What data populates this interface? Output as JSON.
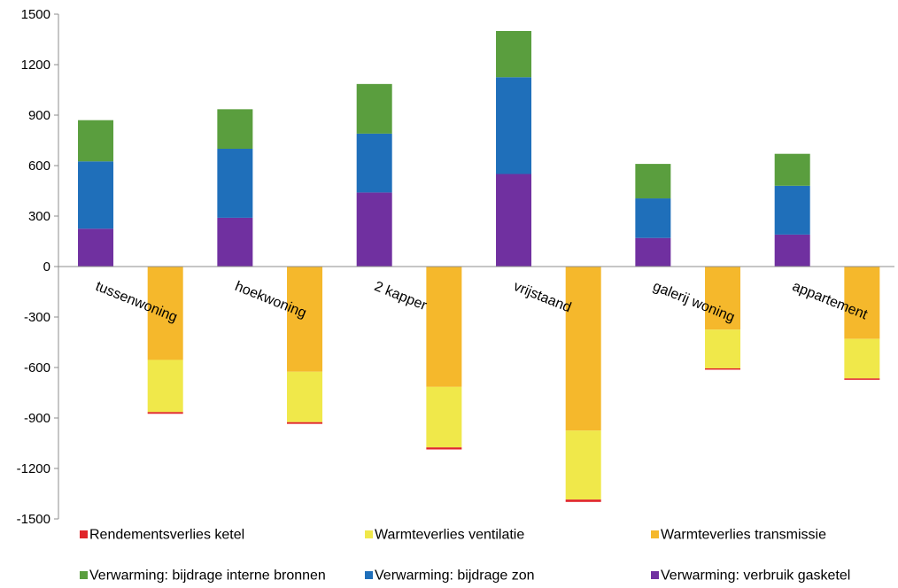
{
  "chart_data": {
    "type": "bar",
    "stacked": true,
    "categories": [
      "tussenwoning",
      "hoekwoning",
      "2 kapper",
      "vrijstaand",
      "galerij woning",
      "appartement"
    ],
    "ylim": [
      -1500,
      1500
    ],
    "yticks": [
      1500,
      1200,
      900,
      600,
      300,
      0,
      -300,
      -600,
      -900,
      -1200,
      -1500
    ],
    "grid": false,
    "legend_position": "bottom",
    "positive_series": [
      {
        "name": "Verwarming: verbruik gasketel",
        "color": "#7030a0",
        "values": [
          225,
          290,
          440,
          550,
          170,
          190
        ]
      },
      {
        "name": "Verwarming: bijdrage zon",
        "color": "#1f6fba",
        "values": [
          400,
          410,
          350,
          575,
          235,
          290
        ]
      },
      {
        "name": "Verwarming: bijdrage interne bronnen",
        "color": "#5a9e3e",
        "values": [
          245,
          235,
          295,
          275,
          205,
          190
        ]
      }
    ],
    "negative_series": [
      {
        "name": "Warmteverlies transmissie",
        "color": "#f5b82c",
        "values": [
          -555,
          -625,
          -715,
          -975,
          -375,
          -430
        ]
      },
      {
        "name": "Warmteverlies ventilatie",
        "color": "#f0e84a",
        "values": [
          -310,
          -300,
          -360,
          -410,
          -230,
          -235
        ]
      },
      {
        "name": "Rendementsverlies ketel",
        "color": "#e0262a",
        "values": [
          -10,
          -10,
          -12,
          -14,
          -8,
          -8
        ]
      }
    ],
    "legend": [
      {
        "name": "Rendementsverlies ketel",
        "color": "#e0262a"
      },
      {
        "name": "Warmteverlies ventilatie",
        "color": "#f0e84a"
      },
      {
        "name": "Warmteverlies transmissie",
        "color": "#f5b82c"
      },
      {
        "name": "Verwarming: bijdrage interne bronnen",
        "color": "#5a9e3e"
      },
      {
        "name": "Verwarming: bijdrage zon",
        "color": "#1f6fba"
      },
      {
        "name": "Verwarming: verbruik gasketel",
        "color": "#7030a0"
      }
    ]
  }
}
